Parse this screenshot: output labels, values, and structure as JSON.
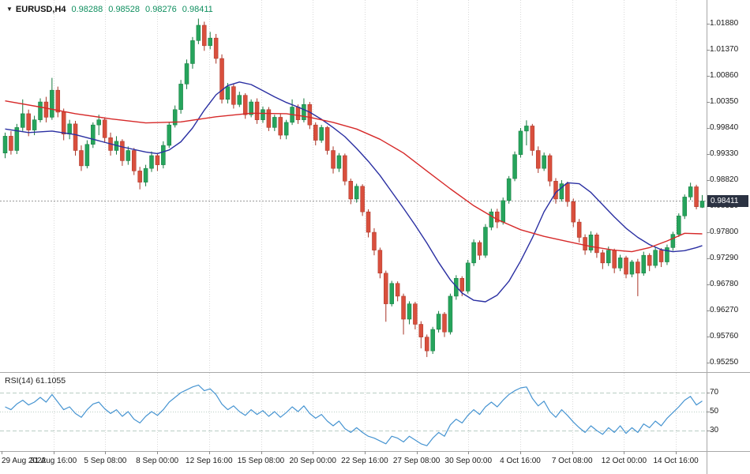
{
  "header": {
    "marker": "▼",
    "symbol_period": "EURUSD,H4",
    "open": "0.98288",
    "high": "0.98528",
    "low": "0.98276",
    "close": "0.98411"
  },
  "colors": {
    "background": "#ffffff",
    "up": "#26a45c",
    "up_stroke": "#157a3e",
    "down": "#d94f3d",
    "down_stroke": "#a83426",
    "ma_fast_blue": "#2a2fa2",
    "ma_slow_red": "#d62929",
    "rsi_line": "#4694d1",
    "rsi_level": "#b9cdc4",
    "quote_text": "#0f8f5f",
    "badge_bg": "#2b3242",
    "badge_text": "#ffffff",
    "axis_text": "#1a1a1a",
    "border": "#a8a8a8",
    "grid": "#d9d9d9",
    "price_line": "#9a9a9a",
    "tick": "#8c8c8c"
  },
  "chart_data": {
    "type": "candlestick",
    "symbol": "EURUSD",
    "timeframe": "H4",
    "title": "EURUSD,H4 0.98288 0.98528 0.98276 0.98411",
    "current_price": "0.98411",
    "current_price_value": 0.98411,
    "ylim": [
      0.95065,
      1.02344
    ],
    "price_axis_labels": [
      "1.01880",
      "1.01370",
      "1.00860",
      "1.00350",
      "0.99840",
      "0.99330",
      "0.98820",
      "0.98310",
      "0.97800",
      "0.97290",
      "0.96780",
      "0.96270",
      "0.95760",
      "0.95250"
    ],
    "time_axis_labels": [
      "29 Aug 2022",
      "31 Aug 16:00",
      "5 Sep 08:00",
      "8 Sep 00:00",
      "12 Sep 16:00",
      "15 Sep 08:00",
      "20 Sep 00:00",
      "22 Sep 16:00",
      "27 Sep 08:00",
      "30 Sep 00:00",
      "4 Oct 16:00",
      "7 Oct 08:00",
      "12 Oct 00:00",
      "14 Oct 16:00"
    ],
    "ohlc": [
      [
        0.9935,
        0.9975,
        0.9925,
        0.9968
      ],
      [
        0.9968,
        0.9978,
        0.9932,
        0.994
      ],
      [
        0.994,
        0.9992,
        0.9933,
        0.9985
      ],
      [
        0.9985,
        1.004,
        0.9978,
        1.0012
      ],
      [
        1.0012,
        1.002,
        0.9968,
        0.998
      ],
      [
        0.998,
        1.0008,
        0.997,
        1.0
      ],
      [
        1.0,
        1.0042,
        0.9995,
        1.0035
      ],
      [
        1.0035,
        1.0045,
        0.9995,
        1.0005
      ],
      [
        1.0005,
        1.0082,
        1.0,
        1.0058
      ],
      [
        1.0058,
        1.0065,
        1.0005,
        1.0015
      ],
      [
        1.0015,
        1.0022,
        0.996,
        0.9972
      ],
      [
        0.9972,
        1.0,
        0.9962,
        0.9992
      ],
      [
        0.9992,
        0.9998,
        0.993,
        0.994
      ],
      [
        0.994,
        0.995,
        0.99,
        0.991
      ],
      [
        0.991,
        0.996,
        0.9905,
        0.9952
      ],
      [
        0.9952,
        0.9995,
        0.9945,
        0.999
      ],
      [
        0.999,
        1.001,
        0.997,
        1.0
      ],
      [
        1.0,
        1.0005,
        0.9955,
        0.9965
      ],
      [
        0.9965,
        0.9975,
        0.993,
        0.994
      ],
      [
        0.994,
        0.9968,
        0.9932,
        0.9958
      ],
      [
        0.9958,
        0.9962,
        0.991,
        0.992
      ],
      [
        0.992,
        0.9948,
        0.9912,
        0.994
      ],
      [
        0.994,
        0.9945,
        0.9892,
        0.99
      ],
      [
        0.99,
        0.9908,
        0.9864,
        0.9878
      ],
      [
        0.9878,
        0.9912,
        0.987,
        0.9905
      ],
      [
        0.9905,
        0.9938,
        0.9898,
        0.993
      ],
      [
        0.993,
        0.9935,
        0.99,
        0.9912
      ],
      [
        0.9912,
        0.9958,
        0.9905,
        0.995
      ],
      [
        0.995,
        0.9996,
        0.9945,
        0.999
      ],
      [
        0.999,
        1.0028,
        0.9985,
        1.002
      ],
      [
        1.002,
        1.0078,
        1.0012,
        1.007
      ],
      [
        1.007,
        1.0118,
        1.006,
        1.011
      ],
      [
        1.011,
        1.0162,
        1.01,
        1.0155
      ],
      [
        1.0155,
        1.0198,
        1.0148,
        1.0185
      ],
      [
        1.0185,
        1.0192,
        1.0135,
        1.0145
      ],
      [
        1.0145,
        1.0172,
        1.0138,
        1.016
      ],
      [
        1.016,
        1.0168,
        1.011,
        1.012
      ],
      [
        1.012,
        1.0128,
        1.0032,
        1.004
      ],
      [
        1.004,
        1.0072,
        1.0032,
        1.0065
      ],
      [
        1.0065,
        1.007,
        1.0022,
        1.003
      ],
      [
        1.003,
        1.0055,
        1.0025,
        1.0048
      ],
      [
        1.0048,
        1.0052,
        1.0002,
        1.001
      ],
      [
        1.001,
        1.004,
        1.0005,
        1.0035
      ],
      [
        1.0035,
        1.0042,
        0.9992,
        1.0
      ],
      [
        1.0,
        1.0026,
        0.9994,
        1.002
      ],
      [
        1.002,
        1.0025,
        0.9978,
        0.9985
      ],
      [
        0.9985,
        1.001,
        0.9978,
        1.0005
      ],
      [
        1.0005,
        1.0012,
        0.9962,
        0.997
      ],
      [
        0.997,
        1.0,
        0.9962,
        0.9995
      ],
      [
        0.9995,
        1.004,
        0.999,
        1.0025
      ],
      [
        1.0025,
        1.003,
        0.9992,
        1.0
      ],
      [
        1.0,
        1.0042,
        0.9995,
        1.003
      ],
      [
        1.003,
        1.0035,
        0.9982,
        0.999
      ],
      [
        0.999,
        0.9995,
        0.995,
        0.996
      ],
      [
        0.996,
        0.999,
        0.9955,
        0.9985
      ],
      [
        0.9985,
        0.9988,
        0.9932,
        0.994
      ],
      [
        0.994,
        0.9948,
        0.9895,
        0.9905
      ],
      [
        0.9905,
        0.9935,
        0.9898,
        0.993
      ],
      [
        0.993,
        0.9934,
        0.9872,
        0.988
      ],
      [
        0.988,
        0.9885,
        0.9835,
        0.9845
      ],
      [
        0.9845,
        0.9875,
        0.9838,
        0.987
      ],
      [
        0.987,
        0.9874,
        0.9812,
        0.982
      ],
      [
        0.982,
        0.9825,
        0.977,
        0.978
      ],
      [
        0.978,
        0.9788,
        0.9735,
        0.9745
      ],
      [
        0.9745,
        0.975,
        0.969,
        0.97
      ],
      [
        0.97,
        0.9705,
        0.9605,
        0.964
      ],
      [
        0.964,
        0.9685,
        0.9635,
        0.968
      ],
      [
        0.968,
        0.9684,
        0.9645,
        0.9655
      ],
      [
        0.9655,
        0.966,
        0.958,
        0.961
      ],
      [
        0.961,
        0.9645,
        0.96,
        0.964
      ],
      [
        0.964,
        0.9644,
        0.959,
        0.96
      ],
      [
        0.96,
        0.9606,
        0.9553,
        0.9575
      ],
      [
        0.9575,
        0.958,
        0.9536,
        0.9548
      ],
      [
        0.9548,
        0.9595,
        0.9542,
        0.959
      ],
      [
        0.959,
        0.9626,
        0.9584,
        0.962
      ],
      [
        0.962,
        0.9624,
        0.9575,
        0.9585
      ],
      [
        0.9585,
        0.966,
        0.958,
        0.9655
      ],
      [
        0.9655,
        0.9696,
        0.9648,
        0.969
      ],
      [
        0.969,
        0.9694,
        0.9655,
        0.9665
      ],
      [
        0.9665,
        0.9726,
        0.966,
        0.972
      ],
      [
        0.972,
        0.9766,
        0.9714,
        0.976
      ],
      [
        0.976,
        0.9764,
        0.9726,
        0.9735
      ],
      [
        0.9735,
        0.9796,
        0.973,
        0.979
      ],
      [
        0.979,
        0.9826,
        0.9784,
        0.982
      ],
      [
        0.982,
        0.9826,
        0.9788,
        0.98
      ],
      [
        0.98,
        0.9848,
        0.9795,
        0.9842
      ],
      [
        0.9842,
        0.989,
        0.9836,
        0.9885
      ],
      [
        0.9885,
        0.9938,
        0.988,
        0.9932
      ],
      [
        0.9932,
        0.9984,
        0.9926,
        0.9978
      ],
      [
        0.9978,
        0.9999,
        0.995,
        0.9988
      ],
      [
        0.9988,
        0.9992,
        0.993,
        0.994
      ],
      [
        0.994,
        0.9948,
        0.9896,
        0.9905
      ],
      [
        0.9905,
        0.9936,
        0.99,
        0.993
      ],
      [
        0.993,
        0.9934,
        0.987,
        0.988
      ],
      [
        0.988,
        0.9886,
        0.9836,
        0.9845
      ],
      [
        0.9845,
        0.9882,
        0.984,
        0.9875
      ],
      [
        0.9875,
        0.9879,
        0.983,
        0.984
      ],
      [
        0.984,
        0.9846,
        0.979,
        0.98
      ],
      [
        0.98,
        0.9806,
        0.976,
        0.977
      ],
      [
        0.977,
        0.9776,
        0.9736,
        0.9745
      ],
      [
        0.9745,
        0.9782,
        0.974,
        0.9775
      ],
      [
        0.9775,
        0.9779,
        0.973,
        0.974
      ],
      [
        0.974,
        0.9746,
        0.9708,
        0.972
      ],
      [
        0.972,
        0.9752,
        0.9714,
        0.9745
      ],
      [
        0.9745,
        0.9748,
        0.97,
        0.971
      ],
      [
        0.971,
        0.9736,
        0.9704,
        0.973
      ],
      [
        0.973,
        0.9734,
        0.969,
        0.9698
      ],
      [
        0.9698,
        0.9726,
        0.9692,
        0.9722
      ],
      [
        0.9722,
        0.9728,
        0.9655,
        0.97
      ],
      [
        0.97,
        0.9742,
        0.9695,
        0.9735
      ],
      [
        0.9735,
        0.9739,
        0.9704,
        0.9715
      ],
      [
        0.9715,
        0.9751,
        0.971,
        0.9745
      ],
      [
        0.9745,
        0.9749,
        0.9712,
        0.9722
      ],
      [
        0.9722,
        0.9756,
        0.9716,
        0.975
      ],
      [
        0.975,
        0.9781,
        0.9744,
        0.9776
      ],
      [
        0.9776,
        0.9817,
        0.9771,
        0.9812
      ],
      [
        0.9812,
        0.9854,
        0.9806,
        0.9849
      ],
      [
        0.9849,
        0.9877,
        0.9843,
        0.9869
      ],
      [
        0.9869,
        0.9873,
        0.9825,
        0.983
      ],
      [
        0.98288,
        0.98528,
        0.98276,
        0.98411
      ]
    ],
    "overlays": [
      {
        "name": "moving-average-blue",
        "color_key": "ma_fast_blue",
        "points": [
          [
            0,
            0.9982
          ],
          [
            4,
            0.9975
          ],
          [
            8,
            0.9978
          ],
          [
            12,
            0.9971
          ],
          [
            16,
            0.9959
          ],
          [
            20,
            0.9947
          ],
          [
            24,
            0.9937
          ],
          [
            26,
            0.9934
          ],
          [
            28,
            0.9941
          ],
          [
            30,
            0.9957
          ],
          [
            32,
            0.9984
          ],
          [
            34,
            1.0019
          ],
          [
            36,
            1.0049
          ],
          [
            38,
            1.0067
          ],
          [
            40,
            1.0074
          ],
          [
            42,
            1.0069
          ],
          [
            44,
            1.0057
          ],
          [
            46,
            1.0045
          ],
          [
            48,
            1.0034
          ],
          [
            50,
            1.0025
          ],
          [
            52,
            1.0015
          ],
          [
            54,
            1.0001
          ],
          [
            56,
            0.9985
          ],
          [
            58,
            0.9967
          ],
          [
            60,
            0.9944
          ],
          [
            62,
            0.9919
          ],
          [
            64,
            0.9891
          ],
          [
            66,
            0.9859
          ],
          [
            68,
            0.9827
          ],
          [
            70,
            0.9794
          ],
          [
            72,
            0.9759
          ],
          [
            74,
            0.9721
          ],
          [
            76,
            0.9687
          ],
          [
            78,
            0.9661
          ],
          [
            80,
            0.9647
          ],
          [
            82,
            0.9644
          ],
          [
            84,
            0.9657
          ],
          [
            86,
            0.9684
          ],
          [
            88,
            0.9724
          ],
          [
            90,
            0.9769
          ],
          [
            92,
            0.982
          ],
          [
            94,
            0.9858
          ],
          [
            96,
            0.9877
          ],
          [
            98,
            0.9875
          ],
          [
            100,
            0.9858
          ],
          [
            102,
            0.9834
          ],
          [
            104,
            0.981
          ],
          [
            106,
            0.9788
          ],
          [
            108,
            0.977
          ],
          [
            110,
            0.9756
          ],
          [
            112,
            0.9746
          ],
          [
            114,
            0.9742
          ],
          [
            116,
            0.9744
          ],
          [
            118,
            0.975
          ],
          [
            119,
            0.9754
          ]
        ]
      },
      {
        "name": "moving-average-red",
        "color_key": "ma_slow_red",
        "points": [
          [
            0,
            1.0037
          ],
          [
            6,
            1.0025
          ],
          [
            12,
            1.0012
          ],
          [
            18,
            1.0002
          ],
          [
            24,
            0.9994
          ],
          [
            30,
            0.9996
          ],
          [
            36,
            1.0006
          ],
          [
            42,
            1.0013
          ],
          [
            48,
            1.0012
          ],
          [
            52,
            1.0005
          ],
          [
            56,
            0.9995
          ],
          [
            60,
            0.9982
          ],
          [
            64,
            0.9962
          ],
          [
            68,
            0.9935
          ],
          [
            72,
            0.99
          ],
          [
            76,
            0.9865
          ],
          [
            80,
            0.9832
          ],
          [
            84,
            0.9805
          ],
          [
            88,
            0.9785
          ],
          [
            92,
            0.9772
          ],
          [
            96,
            0.9762
          ],
          [
            100,
            0.9752
          ],
          [
            104,
            0.9745
          ],
          [
            107,
            0.9742
          ],
          [
            110,
            0.975
          ],
          [
            113,
            0.9763
          ],
          [
            116,
            0.9778
          ],
          [
            119,
            0.9777
          ]
        ]
      }
    ],
    "indicator": {
      "name": "RSI(14)",
      "label": "RSI(14) 61.1055",
      "value": 61.1055,
      "levels": [
        "70",
        "50",
        "30"
      ],
      "level_values": [
        70,
        50,
        30
      ],
      "ylim": [
        8.3,
        90.8
      ],
      "values": [
        55,
        52,
        58,
        62,
        57,
        60,
        65,
        60,
        68,
        60,
        52,
        55,
        48,
        44,
        52,
        58,
        60,
        53,
        48,
        52,
        45,
        50,
        42,
        38,
        45,
        50,
        46,
        52,
        60,
        65,
        70,
        73,
        76,
        78,
        72,
        74,
        68,
        58,
        52,
        56,
        50,
        46,
        52,
        47,
        51,
        45,
        50,
        44,
        49,
        55,
        50,
        56,
        48,
        43,
        47,
        40,
        35,
        40,
        32,
        28,
        33,
        28,
        24,
        22,
        19,
        16,
        24,
        22,
        18,
        24,
        20,
        16,
        14,
        22,
        28,
        24,
        36,
        42,
        38,
        46,
        52,
        47,
        55,
        60,
        55,
        62,
        68,
        72,
        75,
        76,
        64,
        56,
        61,
        50,
        44,
        52,
        46,
        39,
        33,
        28,
        35,
        30,
        26,
        33,
        28,
        35,
        27,
        33,
        28,
        37,
        33,
        40,
        35,
        43,
        49,
        55,
        62,
        66,
        57,
        61.1
      ]
    }
  }
}
